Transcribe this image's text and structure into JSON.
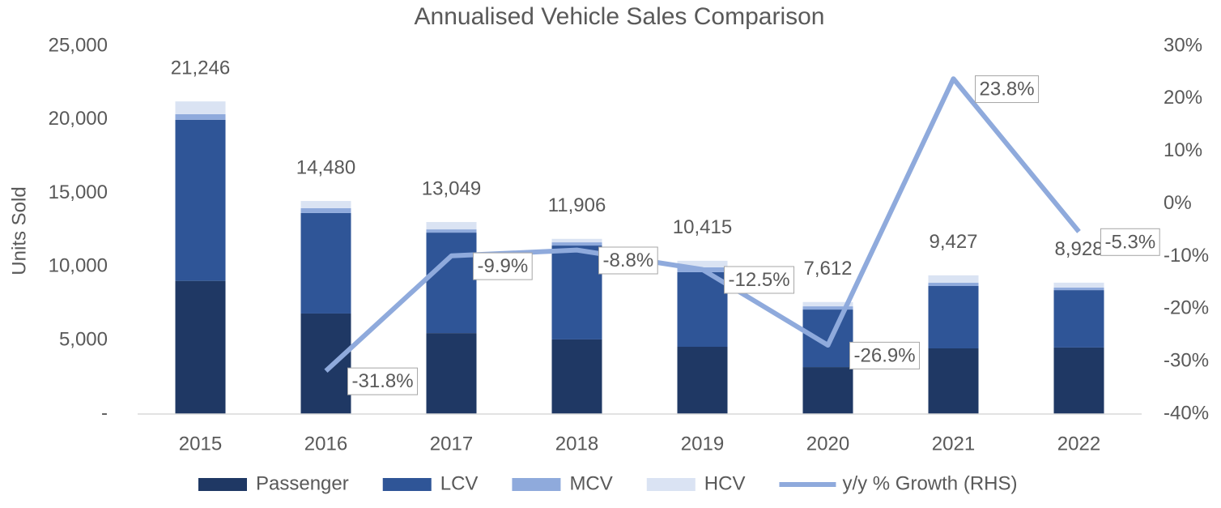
{
  "chart_data": {
    "type": "bar",
    "stacked": true,
    "title": "Annualised Vehicle Sales Comparison",
    "y_label": "Units Sold",
    "categories": [
      "2015",
      "2016",
      "2017",
      "2018",
      "2019",
      "2020",
      "2021",
      "2022"
    ],
    "series": [
      {
        "name": "Passenger",
        "color": "#1f3864",
        "values": [
          9050,
          6830,
          5500,
          5070,
          4570,
          3190,
          4460,
          4520
        ]
      },
      {
        "name": "LCV",
        "color": "#2f5597",
        "values": [
          10950,
          6830,
          6830,
          6380,
          5070,
          3910,
          4240,
          3900
        ]
      },
      {
        "name": "MCV",
        "color": "#8faadc",
        "values": [
          380,
          330,
          220,
          220,
          330,
          220,
          220,
          170
        ]
      },
      {
        "name": "HCV",
        "color": "#dae3f3",
        "values": [
          866,
          490,
          499,
          236,
          445,
          292,
          507,
          338
        ]
      },
      {
        "name": "y/y % Growth (RHS)",
        "type": "line",
        "axis": "y2",
        "color": "#8faadc",
        "values": [
          null,
          -31.8,
          -9.9,
          -8.8,
          -12.5,
          -26.9,
          23.8,
          -5.3
        ],
        "value_labels": [
          null,
          "-31.8%",
          "-9.9%",
          "-8.8%",
          "-12.5%",
          "-26.9%",
          "23.8%",
          "-5.3%"
        ]
      }
    ],
    "totals": {
      "values": [
        21246,
        14480,
        13049,
        11906,
        10415,
        7612,
        9427,
        8928
      ],
      "value_labels": [
        "21,246",
        "14,480",
        "13,049",
        "11,906",
        "10,415",
        "7,612",
        "9,427",
        "8,928"
      ]
    },
    "ylim": [
      0,
      25000
    ],
    "yticks": [
      {
        "value": 0,
        "label": "-"
      },
      {
        "value": 5000,
        "label": "5,000"
      },
      {
        "value": 10000,
        "label": "10,000"
      },
      {
        "value": 15000,
        "label": "15,000"
      },
      {
        "value": 20000,
        "label": "20,000"
      },
      {
        "value": 25000,
        "label": "25,000"
      }
    ],
    "y2lim": [
      -40,
      30
    ],
    "y2ticks": [
      {
        "value": -40,
        "label": "-40%"
      },
      {
        "value": -30,
        "label": "-30%"
      },
      {
        "value": -20,
        "label": "-20%"
      },
      {
        "value": -10,
        "label": "-10%"
      },
      {
        "value": 0,
        "label": "0%"
      },
      {
        "value": 10,
        "label": "10%"
      },
      {
        "value": 20,
        "label": "20%"
      },
      {
        "value": 30,
        "label": "30%"
      }
    ],
    "legend": "bottom",
    "grid": false
  }
}
